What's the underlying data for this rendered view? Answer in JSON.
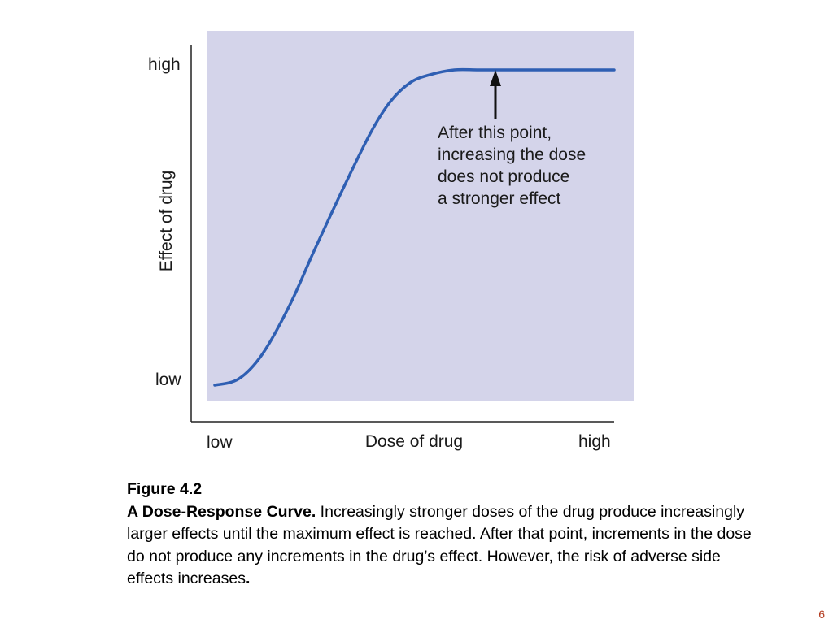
{
  "chart_data": {
    "type": "line",
    "xlabel": "Dose of drug",
    "ylabel": "Effect of drug",
    "x_tick_labels": [
      "low",
      "high"
    ],
    "y_tick_labels": [
      "low",
      "high"
    ],
    "xlim": [
      0,
      1
    ],
    "ylim": [
      0,
      1
    ],
    "grid": false,
    "plot_background": "#d4d4ea",
    "series": [
      {
        "color": "#2f5fb3",
        "x": [
          0.0,
          0.06,
          0.12,
          0.19,
          0.25,
          0.32,
          0.39,
          0.44,
          0.49,
          0.54,
          0.6,
          0.66,
          0.73,
          0.8,
          0.9,
          1.0
        ],
        "y": [
          0.0,
          0.02,
          0.1,
          0.26,
          0.43,
          0.62,
          0.8,
          0.9,
          0.96,
          0.985,
          1.0,
          1.0,
          1.0,
          1.0,
          1.0,
          1.0
        ]
      }
    ],
    "annotations": [
      {
        "text": [
          "After this point,",
          "increasing the dose",
          "does not produce",
          "a stronger effect"
        ],
        "points_to": [
          0.7,
          1.0
        ]
      }
    ]
  },
  "caption": {
    "figure_number": "Figure 4.2",
    "title": "A Dose-Response Curve.",
    "body": " Increasingly stronger doses of the drug produce increasingly larger effects until the maximum effect is reached. After that point, increments in the dose do not  produce any increments in the drug’s effect. However, the risk of adverse side effects increases",
    "end_mark": "."
  },
  "slide_number": "6"
}
